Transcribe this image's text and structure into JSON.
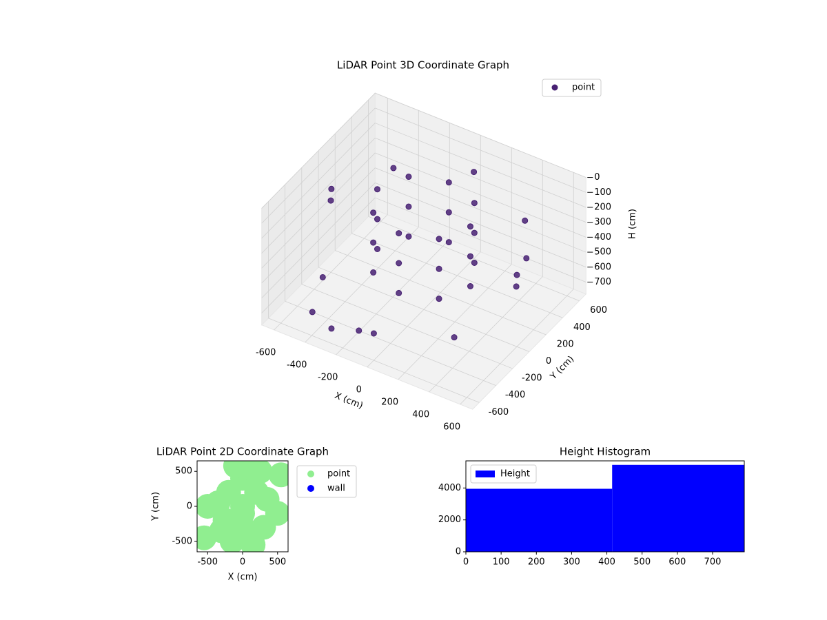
{
  "chart_data": [
    {
      "type": "scatter3d",
      "title": "LiDAR Point 3D Coordinate Graph",
      "xlabel": "X (cm)",
      "ylabel": "Y (cm)",
      "zlabel": "H (cm)",
      "xlim": [
        -680,
        680
      ],
      "ylim": [
        -680,
        680
      ],
      "zlim": [
        0,
        780
      ],
      "zinverted": true,
      "xticks": [
        -600,
        -400,
        -200,
        0,
        200,
        400,
        600
      ],
      "yticks": [
        -600,
        -400,
        -200,
        0,
        200,
        400,
        600
      ],
      "zticks": [
        0,
        100,
        200,
        300,
        400,
        500,
        600,
        700
      ],
      "legend": "upper right",
      "series": [
        {
          "name": "point",
          "color": "#482173",
          "x": [
            300,
            212,
            0,
            -212,
            -300,
            -212,
            0,
            212,
            300,
            212,
            0,
            -212,
            -300,
            -212,
            0,
            212,
            300,
            212,
            0,
            -212,
            -300,
            -212,
            0,
            212,
            600,
            424,
            0,
            -424,
            -600,
            -424,
            0,
            424,
            -450,
            -300,
            -150,
            -650,
            650,
            500
          ],
          "y": [
            0,
            212,
            300,
            212,
            0,
            -212,
            -300,
            -212,
            0,
            212,
            300,
            212,
            0,
            -212,
            -300,
            -212,
            0,
            212,
            300,
            212,
            0,
            -212,
            -300,
            -212,
            0,
            424,
            600,
            424,
            0,
            -424,
            -600,
            -424,
            -500,
            -550,
            -500,
            100,
            -100,
            300
          ],
          "h": [
            100,
            100,
            100,
            100,
            100,
            100,
            100,
            100,
            300,
            300,
            300,
            300,
            300,
            300,
            300,
            300,
            500,
            500,
            500,
            500,
            500,
            500,
            500,
            500,
            300,
            250,
            200,
            250,
            300,
            500,
            600,
            550,
            700,
            720,
            700,
            300,
            300,
            400
          ]
        }
      ]
    },
    {
      "type": "scatter",
      "title": "LiDAR Point 2D Coordinate Graph",
      "xlabel": "X (cm)",
      "ylabel": "Y (cm)",
      "xlim": [
        -650,
        650
      ],
      "ylim": [
        -650,
        650
      ],
      "xticks": [
        -500,
        0,
        500
      ],
      "yticks": [
        -500,
        0,
        500
      ],
      "series": [
        {
          "name": "point",
          "color": "#90ee90",
          "x": [
            0,
            200,
            -200,
            0,
            0,
            300,
            -300,
            350,
            -350,
            -150,
            150,
            100,
            -100,
            -500,
            500,
            -550,
            550,
            0,
            250,
            -250
          ],
          "y": [
            0,
            200,
            200,
            -300,
            400,
            -300,
            -350,
            100,
            50,
            -500,
            -550,
            550,
            580,
            0,
            -100,
            -450,
            450,
            -100,
            500,
            -200
          ]
        },
        {
          "name": "wall",
          "color": "#0000ff",
          "x": [],
          "y": []
        }
      ]
    },
    {
      "type": "histogram",
      "title": "Height Histogram",
      "series": [
        {
          "name": "Height",
          "color": "#0000ff",
          "bins": [
            0,
            415,
            790
          ],
          "values": [
            3950,
            5450
          ]
        }
      ],
      "xlim": [
        0,
        790
      ],
      "ylim": [
        0,
        5700
      ],
      "xticks": [
        0,
        100,
        200,
        300,
        400,
        500,
        600,
        700
      ],
      "yticks": [
        0,
        2000,
        4000
      ],
      "legend": "upper left"
    }
  ]
}
